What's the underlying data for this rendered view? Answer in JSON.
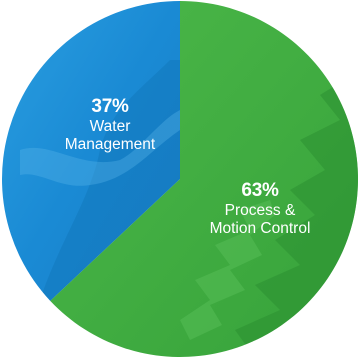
{
  "chart_data": {
    "type": "pie",
    "title": "",
    "slices": [
      {
        "label_value": "37%",
        "label_line1": "Water",
        "label_line2": "Management",
        "value": 37,
        "color": "#1e90d8"
      },
      {
        "label_value": "63%",
        "label_line1": "Process &",
        "label_line2": "Motion Control",
        "value": 63,
        "color": "#3dae3f"
      }
    ],
    "legend": "none"
  }
}
